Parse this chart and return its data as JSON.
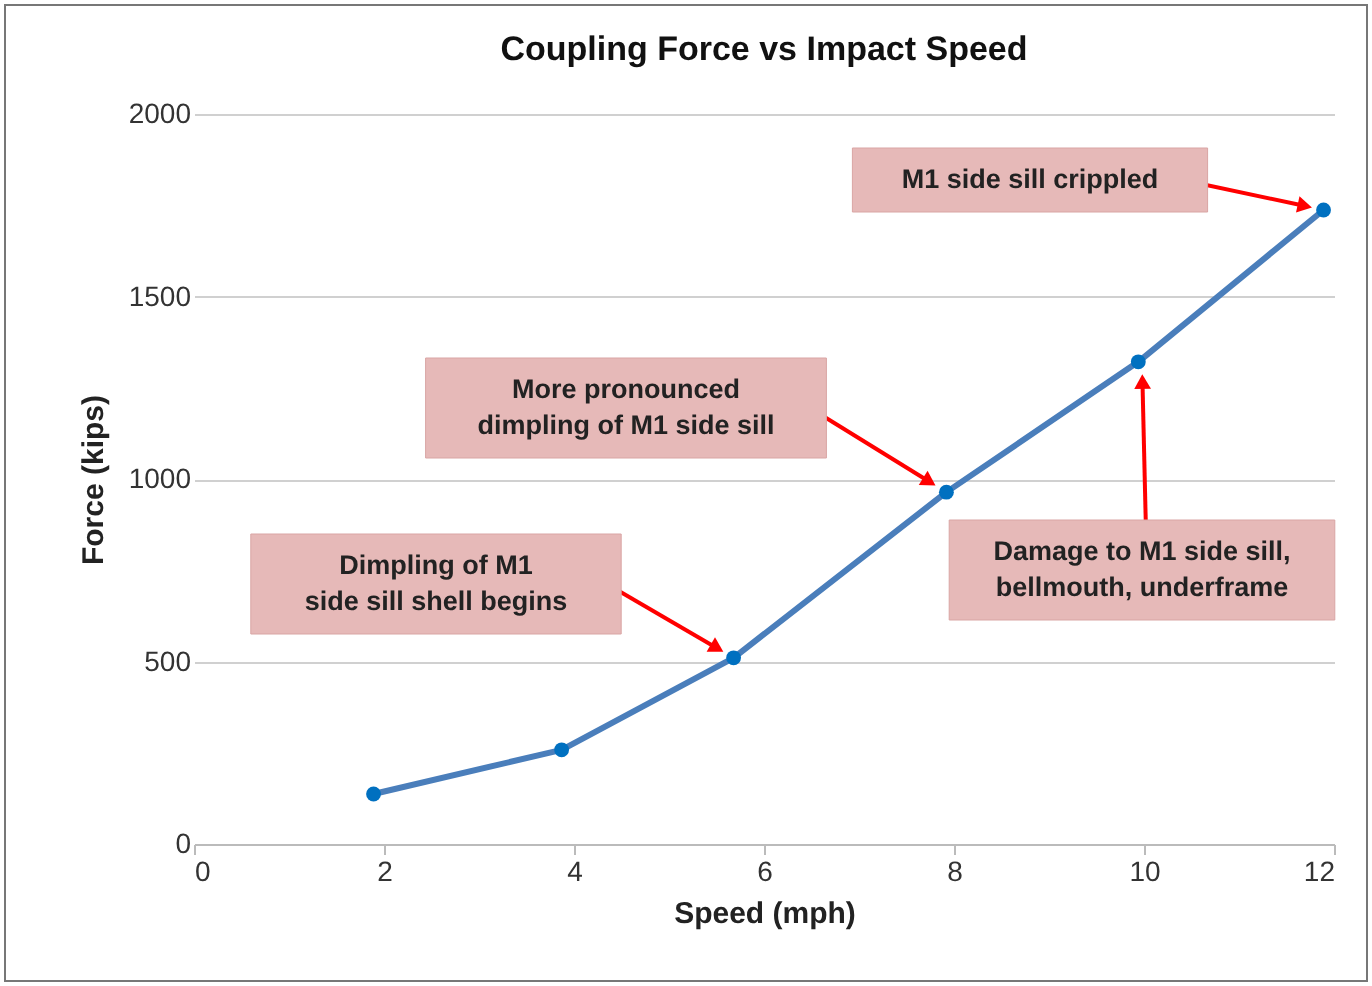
{
  "chart_data": {
    "type": "line",
    "title": "Coupling Force vs Impact Speed",
    "xlabel": "Speed (mph)",
    "ylabel": "Force (kips)",
    "x": [
      1.89,
      3.87,
      5.68,
      7.92,
      9.94,
      11.89
    ],
    "series": [
      {
        "color": "#4a7ebb",
        "values": [
          137,
          258,
          510,
          964,
          1321,
          1737
        ]
      }
    ],
    "xlim": [
      0,
      12
    ],
    "xticks": [
      0,
      2,
      4,
      6,
      8,
      10,
      12
    ],
    "ylim": [
      0,
      2000
    ],
    "yticks": [
      0,
      500,
      1000,
      1500,
      2000
    ],
    "grid": "y",
    "marker": "circle",
    "line_style": "solid",
    "annotations": [
      "Dimpling of M1\nside sill shell begins",
      "More pronounced\ndimpling of M1 side sill",
      "Damage to M1 side sill,\nbellmouth, underframe",
      "M1 side sill crippled"
    ]
  }
}
